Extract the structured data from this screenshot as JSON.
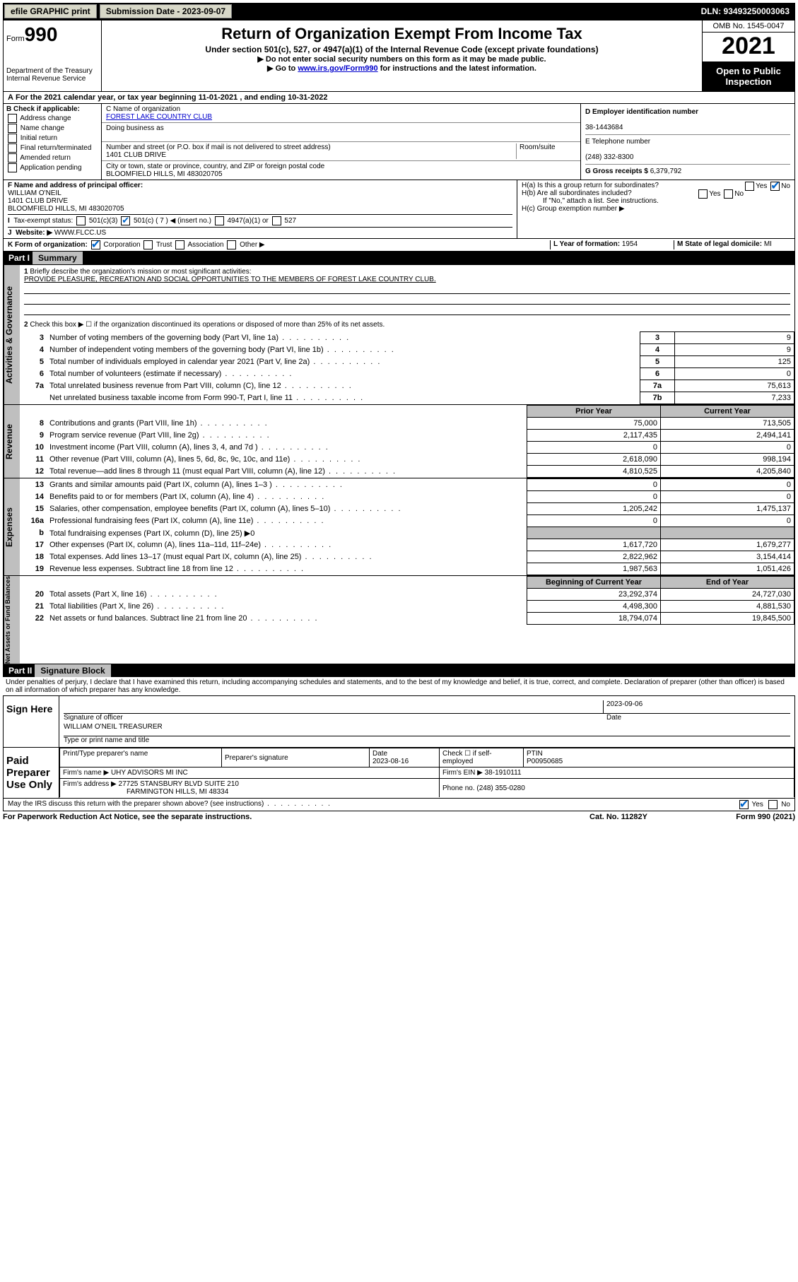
{
  "topbar": {
    "efile": "efile GRAPHIC print",
    "submission": "Submission Date - 2023-09-07",
    "dln": "DLN: 93493250003063"
  },
  "header": {
    "form_prefix": "Form",
    "form_no": "990",
    "dept": "Department of the Treasury",
    "irs": "Internal Revenue Service",
    "title": "Return of Organization Exempt From Income Tax",
    "subtitle": "Under section 501(c), 527, or 4947(a)(1) of the Internal Revenue Code (except private foundations)",
    "note1": "▶ Do not enter social security numbers on this form as it may be made public.",
    "note2_pre": "▶ Go to ",
    "note2_link": "www.irs.gov/Form990",
    "note2_post": " for instructions and the latest information.",
    "omb": "OMB No. 1545-0047",
    "year": "2021",
    "open": "Open to Public Inspection"
  },
  "periodA": "For the 2021 calendar year, or tax year beginning 11-01-2021   , and ending 10-31-2022",
  "boxB": {
    "title": "B Check if applicable:",
    "items": [
      "Address change",
      "Name change",
      "Initial return",
      "Final return/terminated",
      "Amended return",
      "Application pending"
    ]
  },
  "boxC": {
    "name_lab": "C Name of organization",
    "name": "FOREST LAKE COUNTRY CLUB",
    "dba_lab": "Doing business as",
    "dba": "",
    "street_lab": "Number and street (or P.O. box if mail is not delivered to street address)",
    "room_lab": "Room/suite",
    "street": "1401 CLUB DRIVE",
    "city_lab": "City or town, state or province, country, and ZIP or foreign postal code",
    "city": "BLOOMFIELD HILLS, MI  483020705"
  },
  "boxD": {
    "ein_lab": "D Employer identification number",
    "ein": "38-1443684",
    "phone_lab": "E Telephone number",
    "phone": "(248) 332-8300",
    "gross_lab": "G Gross receipts $",
    "gross": "6,379,792"
  },
  "F": {
    "lab": "F Name and address of principal officer:",
    "name": "WILLIAM O'NEIL",
    "addr1": "1401 CLUB DRIVE",
    "addr2": "BLOOMFIELD HILLS, MI  483020705"
  },
  "H": {
    "a": "H(a)  Is this a group return for subordinates?",
    "yes": "Yes",
    "no": "No",
    "b": "H(b)  Are all subordinates included?",
    "bnote": "If \"No,\" attach a list. See instructions.",
    "c": "H(c)  Group exemption number ▶"
  },
  "I": {
    "lab": "Tax-exempt status:",
    "c501c3": "501(c)(3)",
    "c501c": "501(c) ( 7 ) ◀ (insert no.)",
    "c4947": "4947(a)(1) or",
    "c527": "527"
  },
  "J": {
    "lab": "Website: ▶",
    "val": "WWW.FLCC.US"
  },
  "K": {
    "lab": "K Form of organization:",
    "corp": "Corporation",
    "trust": "Trust",
    "assoc": "Association",
    "other": "Other ▶"
  },
  "L": {
    "lab": "L Year of formation:",
    "val": "1954"
  },
  "M": {
    "lab": "M State of legal domicile:",
    "val": "MI"
  },
  "partI": {
    "num": "Part I",
    "title": "Summary"
  },
  "summary": {
    "q1": "Briefly describe the organization's mission or most significant activities:",
    "mission": "PROVIDE PLEASURE, RECREATION AND SOCIAL OPPORTUNITIES TO THE MEMBERS OF FOREST LAKE COUNTRY CLUB.",
    "q2": "Check this box ▶ ☐  if the organization discontinued its operations or disposed of more than 25% of its net assets.",
    "rows_gov": [
      {
        "n": "3",
        "t": "Number of voting members of the governing body (Part VI, line 1a)",
        "c": "3",
        "v": "9"
      },
      {
        "n": "4",
        "t": "Number of independent voting members of the governing body (Part VI, line 1b)",
        "c": "4",
        "v": "9"
      },
      {
        "n": "5",
        "t": "Total number of individuals employed in calendar year 2021 (Part V, line 2a)",
        "c": "5",
        "v": "125"
      },
      {
        "n": "6",
        "t": "Total number of volunteers (estimate if necessary)",
        "c": "6",
        "v": "0"
      },
      {
        "n": "7a",
        "t": "Total unrelated business revenue from Part VIII, column (C), line 12",
        "c": "7a",
        "v": "75,613"
      },
      {
        "n": "",
        "t": "Net unrelated business taxable income from Form 990-T, Part I, line 11",
        "c": "7b",
        "v": "7,233"
      }
    ],
    "prior": "Prior Year",
    "current": "Current Year",
    "rev": [
      {
        "n": "8",
        "t": "Contributions and grants (Part VIII, line 1h)",
        "p": "75,000",
        "c": "713,505"
      },
      {
        "n": "9",
        "t": "Program service revenue (Part VIII, line 2g)",
        "p": "2,117,435",
        "c": "2,494,141"
      },
      {
        "n": "10",
        "t": "Investment income (Part VIII, column (A), lines 3, 4, and 7d )",
        "p": "0",
        "c": "0"
      },
      {
        "n": "11",
        "t": "Other revenue (Part VIII, column (A), lines 5, 6d, 8c, 9c, 10c, and 11e)",
        "p": "2,618,090",
        "c": "998,194"
      },
      {
        "n": "12",
        "t": "Total revenue—add lines 8 through 11 (must equal Part VIII, column (A), line 12)",
        "p": "4,810,525",
        "c": "4,205,840"
      }
    ],
    "exp": [
      {
        "n": "13",
        "t": "Grants and similar amounts paid (Part IX, column (A), lines 1–3 )",
        "p": "0",
        "c": "0"
      },
      {
        "n": "14",
        "t": "Benefits paid to or for members (Part IX, column (A), line 4)",
        "p": "0",
        "c": "0"
      },
      {
        "n": "15",
        "t": "Salaries, other compensation, employee benefits (Part IX, column (A), lines 5–10)",
        "p": "1,205,242",
        "c": "1,475,137"
      },
      {
        "n": "16a",
        "t": "Professional fundraising fees (Part IX, column (A), line 11e)",
        "p": "0",
        "c": "0"
      },
      {
        "n": "b",
        "t": "Total fundraising expenses (Part IX, column (D), line 25) ▶0",
        "p": "",
        "c": "",
        "gray": true
      },
      {
        "n": "17",
        "t": "Other expenses (Part IX, column (A), lines 11a–11d, 11f–24e)",
        "p": "1,617,720",
        "c": "1,679,277"
      },
      {
        "n": "18",
        "t": "Total expenses. Add lines 13–17 (must equal Part IX, column (A), line 25)",
        "p": "2,822,962",
        "c": "3,154,414"
      },
      {
        "n": "19",
        "t": "Revenue less expenses. Subtract line 18 from line 12",
        "p": "1,987,563",
        "c": "1,051,426"
      }
    ],
    "boy": "Beginning of Current Year",
    "eoy": "End of Year",
    "na": [
      {
        "n": "20",
        "t": "Total assets (Part X, line 16)",
        "p": "23,292,374",
        "c": "24,727,030"
      },
      {
        "n": "21",
        "t": "Total liabilities (Part X, line 26)",
        "p": "4,498,300",
        "c": "4,881,530"
      },
      {
        "n": "22",
        "t": "Net assets or fund balances. Subtract line 21 from line 20",
        "p": "18,794,074",
        "c": "19,845,500"
      }
    ]
  },
  "sidebars": {
    "gov": "Activities & Governance",
    "rev": "Revenue",
    "exp": "Expenses",
    "na": "Net Assets or Fund Balances"
  },
  "partII": {
    "num": "Part II",
    "title": "Signature Block"
  },
  "sig": {
    "decl": "Under penalties of perjury, I declare that I have examined this return, including accompanying schedules and statements, and to the best of my knowledge and belief, it is true, correct, and complete. Declaration of preparer (other than officer) is based on all information of which preparer has any knowledge.",
    "sign_here": "Sign Here",
    "sig_officer": "Signature of officer",
    "date": "Date",
    "sig_date": "2023-09-06",
    "officer": "WILLIAM O'NEIL TREASURER",
    "type_name": "Type or print name and title",
    "paid": "Paid Preparer Use Only",
    "prep_name_lab": "Print/Type preparer's name",
    "prep_sig_lab": "Preparer's signature",
    "prep_date_lab": "Date",
    "prep_date": "2023-08-16",
    "self_lab": "Check ☐ if self-employed",
    "ptin_lab": "PTIN",
    "ptin": "P00950685",
    "firm_name_lab": "Firm's name    ▶",
    "firm_name": "UHY ADVISORS MI INC",
    "firm_ein_lab": "Firm's EIN ▶",
    "firm_ein": "38-1910111",
    "firm_addr_lab": "Firm's address ▶",
    "firm_addr1": "27725 STANSBURY BLVD SUITE 210",
    "firm_addr2": "FARMINGTON HILLS, MI  48334",
    "firm_phone_lab": "Phone no.",
    "firm_phone": "(248) 355-0280",
    "discuss": "May the IRS discuss this return with the preparer shown above? (see instructions)",
    "yes": "Yes",
    "no": "No"
  },
  "footer": {
    "pra": "For Paperwork Reduction Act Notice, see the separate instructions.",
    "cat": "Cat. No. 11282Y",
    "form": "Form 990 (2021)"
  }
}
